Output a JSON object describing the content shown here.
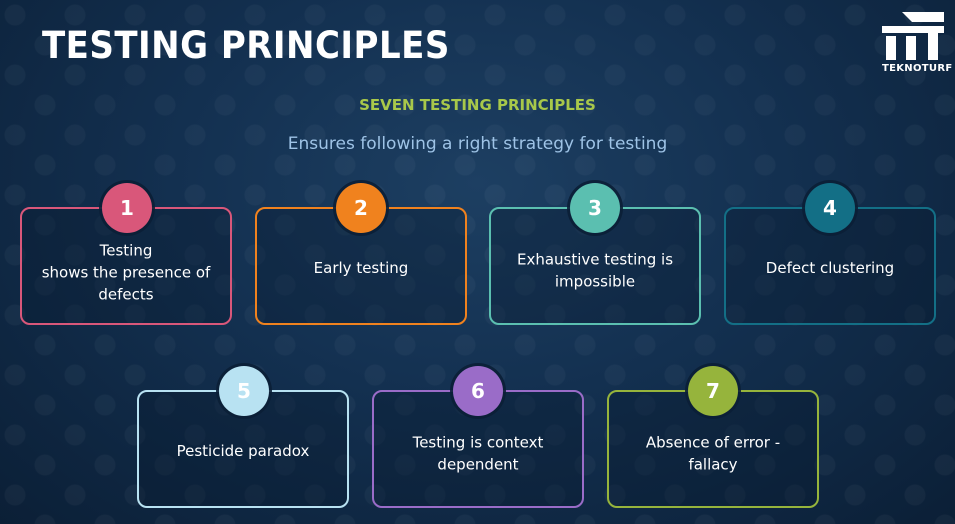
{
  "header": {
    "title": "TESTING PRINCIPLES",
    "logo_text": "TEKNOTURF"
  },
  "subtitle": "SEVEN TESTING PRINCIPLES",
  "tagline": "Ensures following a right strategy for testing",
  "colors": {
    "subtitle": "#a8c84a",
    "tagline": "#9ec3e6"
  },
  "principles": [
    {
      "number": "1",
      "text": "Testing\nshows the presence of\ndefects",
      "color": "#d9577a"
    },
    {
      "number": "2",
      "text": "Early testing",
      "color": "#f0821e"
    },
    {
      "number": "3",
      "text": "Exhaustive testing is\nimpossible",
      "color": "#5bbfb0"
    },
    {
      "number": "4",
      "text": "Defect clustering",
      "color": "#136f86"
    },
    {
      "number": "5",
      "text": "Pesticide paradox",
      "color": "#b8e2f2"
    },
    {
      "number": "6",
      "text": "Testing is context\ndependent",
      "color": "#9a6cc8"
    },
    {
      "number": "7",
      "text": "Absence of error -\nfallacy",
      "color": "#96b43c"
    }
  ]
}
